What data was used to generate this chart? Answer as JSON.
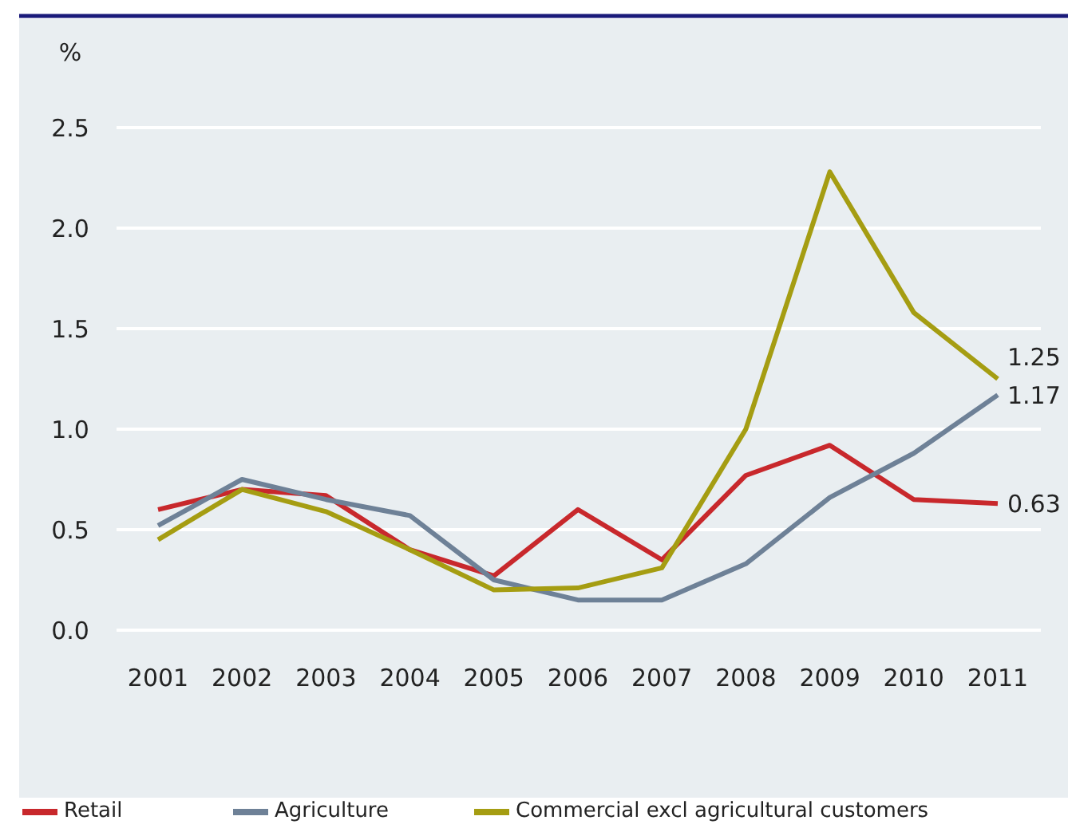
{
  "chart_data": {
    "type": "line",
    "ylabel": "%",
    "categories": [
      "2001",
      "2002",
      "2003",
      "2004",
      "2005",
      "2006",
      "2007",
      "2008",
      "2009",
      "2010",
      "2011"
    ],
    "series": [
      {
        "name": "Retail",
        "color": "#c8282c",
        "values": [
          0.6,
          0.7,
          0.67,
          0.4,
          0.27,
          0.6,
          0.35,
          0.77,
          0.92,
          0.65,
          0.63
        ],
        "value_labels": [
          null,
          null,
          null,
          null,
          null,
          null,
          null,
          null,
          null,
          null,
          "0.63"
        ]
      },
      {
        "name": "Agriculture",
        "color": "#6e8197",
        "values": [
          0.52,
          0.75,
          0.65,
          0.57,
          0.25,
          0.15,
          0.15,
          0.33,
          0.66,
          0.88,
          1.17
        ],
        "value_labels": [
          null,
          null,
          null,
          null,
          null,
          null,
          null,
          null,
          null,
          null,
          "1.17"
        ]
      },
      {
        "name": "Commercial excl agricultural customers",
        "color": "#a59d12",
        "values": [
          0.45,
          0.7,
          0.59,
          0.4,
          0.2,
          0.21,
          0.31,
          1.0,
          2.28,
          1.58,
          1.25
        ],
        "value_labels": [
          null,
          null,
          null,
          null,
          null,
          null,
          null,
          null,
          null,
          null,
          "1.25"
        ]
      }
    ],
    "ylim": [
      0,
      2.5
    ],
    "yticks": [
      {
        "value": 0,
        "label": "0.0"
      },
      {
        "value": 0.5,
        "label": "0.5"
      },
      {
        "value": 1,
        "label": "1.0"
      },
      {
        "value": 1.5,
        "label": "1.5"
      },
      {
        "value": 2,
        "label": "2.0"
      },
      {
        "value": 2.5,
        "label": "2.5"
      }
    ],
    "grid": "y",
    "legend": "bottom",
    "marker": "none",
    "line_style": "solid"
  }
}
